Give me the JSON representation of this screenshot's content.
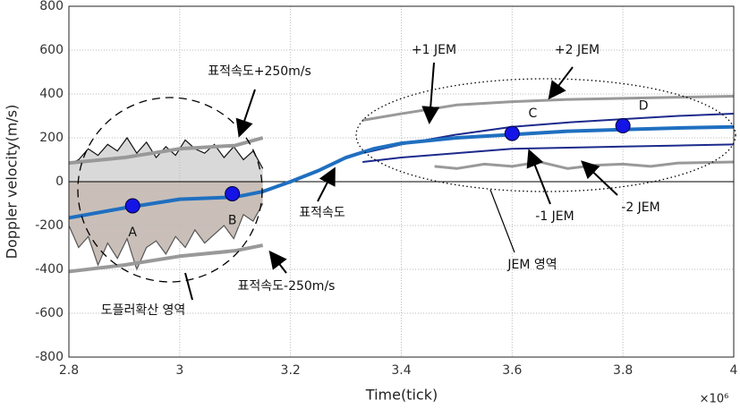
{
  "chart_data": {
    "type": "line",
    "xlabel": "Time(tick)",
    "ylabel": "Doppler velocity(m/s)",
    "x_multiplier": "×10⁶",
    "xlim": [
      2.8,
      4
    ],
    "ylim": [
      -800,
      800
    ],
    "xticks": [
      2.8,
      3,
      3.2,
      3.4,
      3.6,
      3.8,
      4
    ],
    "yticks": [
      -800,
      -600,
      -400,
      -200,
      0,
      200,
      400,
      600,
      800
    ],
    "grid": true,
    "spread_areas": [
      {
        "color": "#d9d9d9",
        "line_color": "#111",
        "x": [
          2.8,
          2.8175,
          2.835,
          2.8525,
          2.87,
          2.8875,
          2.905,
          2.9225,
          2.94,
          2.9575,
          2.975,
          2.9925,
          3.01,
          3.0275,
          3.045,
          3.0625,
          3.08,
          3.0975,
          3.115,
          3.1325,
          3.15
        ],
        "values": [
          80,
          100,
          150,
          120,
          170,
          140,
          200,
          130,
          180,
          110,
          160,
          120,
          190,
          150,
          130,
          170,
          110,
          160,
          100,
          140,
          60
        ]
      },
      {
        "color": "#c9bfb8",
        "line_color": "#555",
        "x": [
          2.8,
          2.8175,
          2.835,
          2.8525,
          2.87,
          2.8875,
          2.905,
          2.9225,
          2.94,
          2.9575,
          2.975,
          2.9925,
          3.01,
          3.0275,
          3.045,
          3.0625,
          3.08,
          3.0975,
          3.115,
          3.1325,
          3.15
        ],
        "values": [
          -200,
          -300,
          -250,
          -380,
          -280,
          -350,
          -260,
          -400,
          -300,
          -270,
          -330,
          -250,
          -300,
          -220,
          -280,
          -240,
          -200,
          -260,
          -150,
          -180,
          -100
        ]
      }
    ],
    "series": [
      {
        "color": "#999999",
        "width": 4,
        "x": [
          2.8,
          2.9,
          3.0,
          3.1,
          3.15
        ],
        "values": [
          85,
          110,
          150,
          165,
          200
        ]
      },
      {
        "color": "#999999",
        "width": 4,
        "x": [
          2.8,
          2.9,
          3.0,
          3.1,
          3.15
        ],
        "values": [
          -410,
          -380,
          -340,
          -315,
          -290
        ]
      },
      {
        "color": "#999999",
        "width": 3,
        "x": [
          3.33,
          3.4,
          3.5,
          3.6,
          3.7,
          3.8,
          3.9,
          4.0
        ],
        "values": [
          280,
          310,
          350,
          365,
          375,
          380,
          385,
          390
        ]
      },
      {
        "color": "#999999",
        "width": 3,
        "x": [
          3.46,
          3.5,
          3.55,
          3.6,
          3.65,
          3.7,
          3.75,
          3.8,
          3.85,
          3.9,
          4.0
        ],
        "values": [
          70,
          60,
          80,
          70,
          90,
          60,
          75,
          80,
          70,
          85,
          90
        ]
      },
      {
        "color": "#1c2a8c",
        "width": 2,
        "x": [
          3.33,
          3.4,
          3.5,
          3.6,
          3.7,
          3.8,
          3.9,
          4.0
        ],
        "values": [
          130,
          170,
          215,
          250,
          270,
          285,
          300,
          310
        ]
      },
      {
        "color": "#1c2a8c",
        "width": 2,
        "x": [
          3.33,
          3.4,
          3.5,
          3.6,
          3.7,
          3.8,
          3.9,
          4.0
        ],
        "values": [
          90,
          110,
          130,
          150,
          155,
          160,
          165,
          170
        ]
      },
      {
        "color": "#1f6fc0",
        "width": 4,
        "x": [
          2.8,
          2.9,
          3.0,
          3.1,
          3.15,
          3.2,
          3.25,
          3.3,
          3.35,
          3.4,
          3.5,
          3.6,
          3.7,
          3.8,
          3.9,
          4.0
        ],
        "values": [
          -165,
          -120,
          -80,
          -70,
          -45,
          0,
          50,
          110,
          150,
          175,
          200,
          215,
          230,
          238,
          245,
          250
        ]
      }
    ],
    "points": {
      "color": "#1414e6",
      "labels": [
        "A",
        "B",
        "C",
        "D"
      ],
      "x": [
        2.915,
        3.095,
        3.6,
        3.8
      ],
      "values": [
        -110,
        -55,
        220,
        255
      ]
    },
    "annotations": [
      "표적속도+250m/s",
      "표적속도",
      "표적속도-250m/s",
      "도플러확산 영역",
      "+1 JEM",
      "+2 JEM",
      "-1 JEM",
      "-2 JEM",
      "JEM 영역"
    ]
  }
}
